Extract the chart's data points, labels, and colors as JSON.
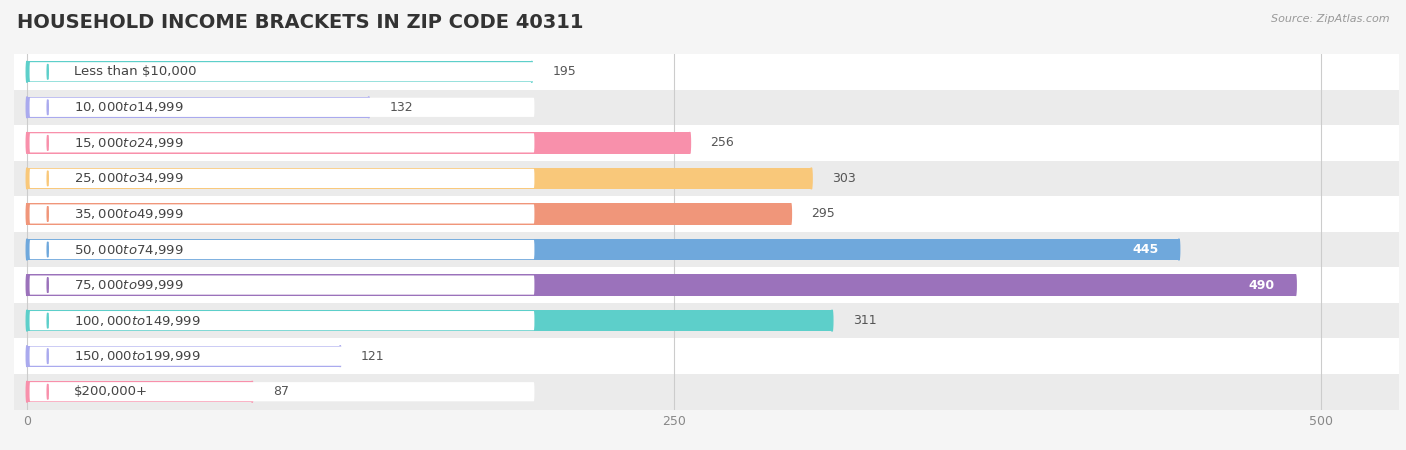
{
  "title": "HOUSEHOLD INCOME BRACKETS IN ZIP CODE 40311",
  "source": "Source: ZipAtlas.com",
  "categories": [
    "Less than $10,000",
    "$10,000 to $14,999",
    "$15,000 to $24,999",
    "$25,000 to $34,999",
    "$35,000 to $49,999",
    "$50,000 to $74,999",
    "$75,000 to $99,999",
    "$100,000 to $149,999",
    "$150,000 to $199,999",
    "$200,000+"
  ],
  "values": [
    195,
    132,
    256,
    303,
    295,
    445,
    490,
    311,
    121,
    87
  ],
  "bar_colors": [
    "#5DCFCA",
    "#AAAAEE",
    "#F890AB",
    "#F9C87A",
    "#F0967A",
    "#6FA8DC",
    "#9B72BB",
    "#5DCFCA",
    "#AAAAEE",
    "#F890AB"
  ],
  "xlim": [
    -5,
    530
  ],
  "xticks": [
    0,
    250,
    500
  ],
  "bar_height": 0.6,
  "background_color": "#f5f5f5",
  "row_bg_colors": [
    "#ffffff",
    "#ebebeb"
  ],
  "title_fontsize": 14,
  "label_fontsize": 9.5,
  "value_fontsize": 9,
  "value_threshold_inside": 350
}
